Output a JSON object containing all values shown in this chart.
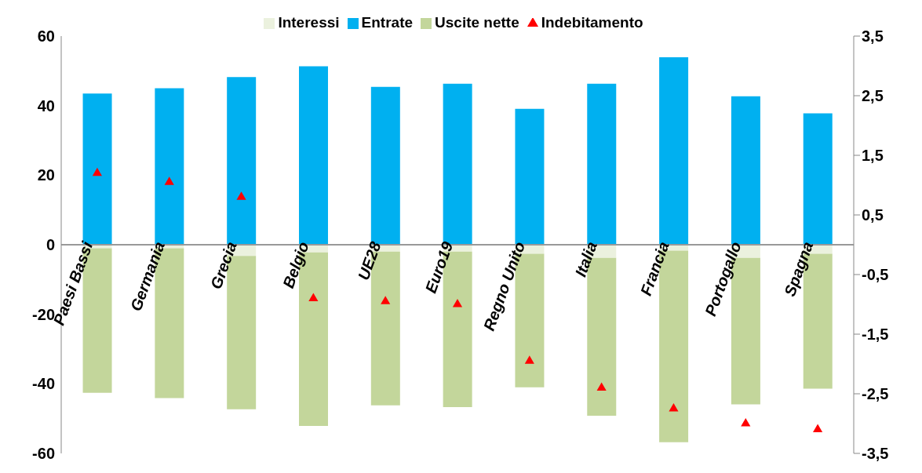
{
  "chart_data": {
    "type": "bar",
    "stacked": true,
    "categories": [
      "Paesi Bassi",
      "Germania",
      "Grecia",
      "Belgio",
      "UE28",
      "Euro19",
      "Regno Unito",
      "Italia",
      "Francia",
      "Portogallo",
      "Spagna"
    ],
    "series": [
      {
        "name": "Interessi",
        "color": "#ebf1de",
        "values": [
          -1.0,
          -1.0,
          -3.2,
          -2.2,
          -2.0,
          -2.0,
          -2.6,
          -3.8,
          -1.7,
          -3.8,
          -2.6
        ]
      },
      {
        "name": "Entrate",
        "color": "#00b0f0",
        "values": [
          43.5,
          45.0,
          48.2,
          51.3,
          45.4,
          46.3,
          39.1,
          46.3,
          53.9,
          42.7,
          37.8
        ]
      },
      {
        "name": "Uscite nette",
        "color": "#c3d69b",
        "values": [
          -41.6,
          -43.1,
          -44.1,
          -49.9,
          -44.2,
          -44.7,
          -38.4,
          -45.4,
          -55.1,
          -42.1,
          -38.8
        ]
      },
      {
        "name": "Indebitamento",
        "type": "scatter",
        "axis": "y2",
        "marker": "triangle",
        "color": "#ff0000",
        "values": [
          1.2,
          1.05,
          0.8,
          -0.9,
          -0.95,
          -1.0,
          -1.95,
          -2.4,
          -2.75,
          -3.0,
          -3.1
        ]
      }
    ],
    "ylim": [
      -60,
      60
    ],
    "yticks": [
      -60,
      -40,
      -20,
      0,
      20,
      40,
      60
    ],
    "y2lim": [
      -3.5,
      3.5
    ],
    "y2ticks": [
      {
        "value": -3.5,
        "label": "-3,5"
      },
      {
        "value": -2.5,
        "label": "-2,5"
      },
      {
        "value": -1.5,
        "label": "-1,5"
      },
      {
        "value": -0.5,
        "label": "-0,5"
      },
      {
        "value": 0.5,
        "label": "0,5"
      },
      {
        "value": 1.5,
        "label": "1,5"
      },
      {
        "value": 2.5,
        "label": "2,5"
      },
      {
        "value": 3.5,
        "label": "3,5"
      }
    ],
    "grid": false,
    "legend": "top"
  }
}
